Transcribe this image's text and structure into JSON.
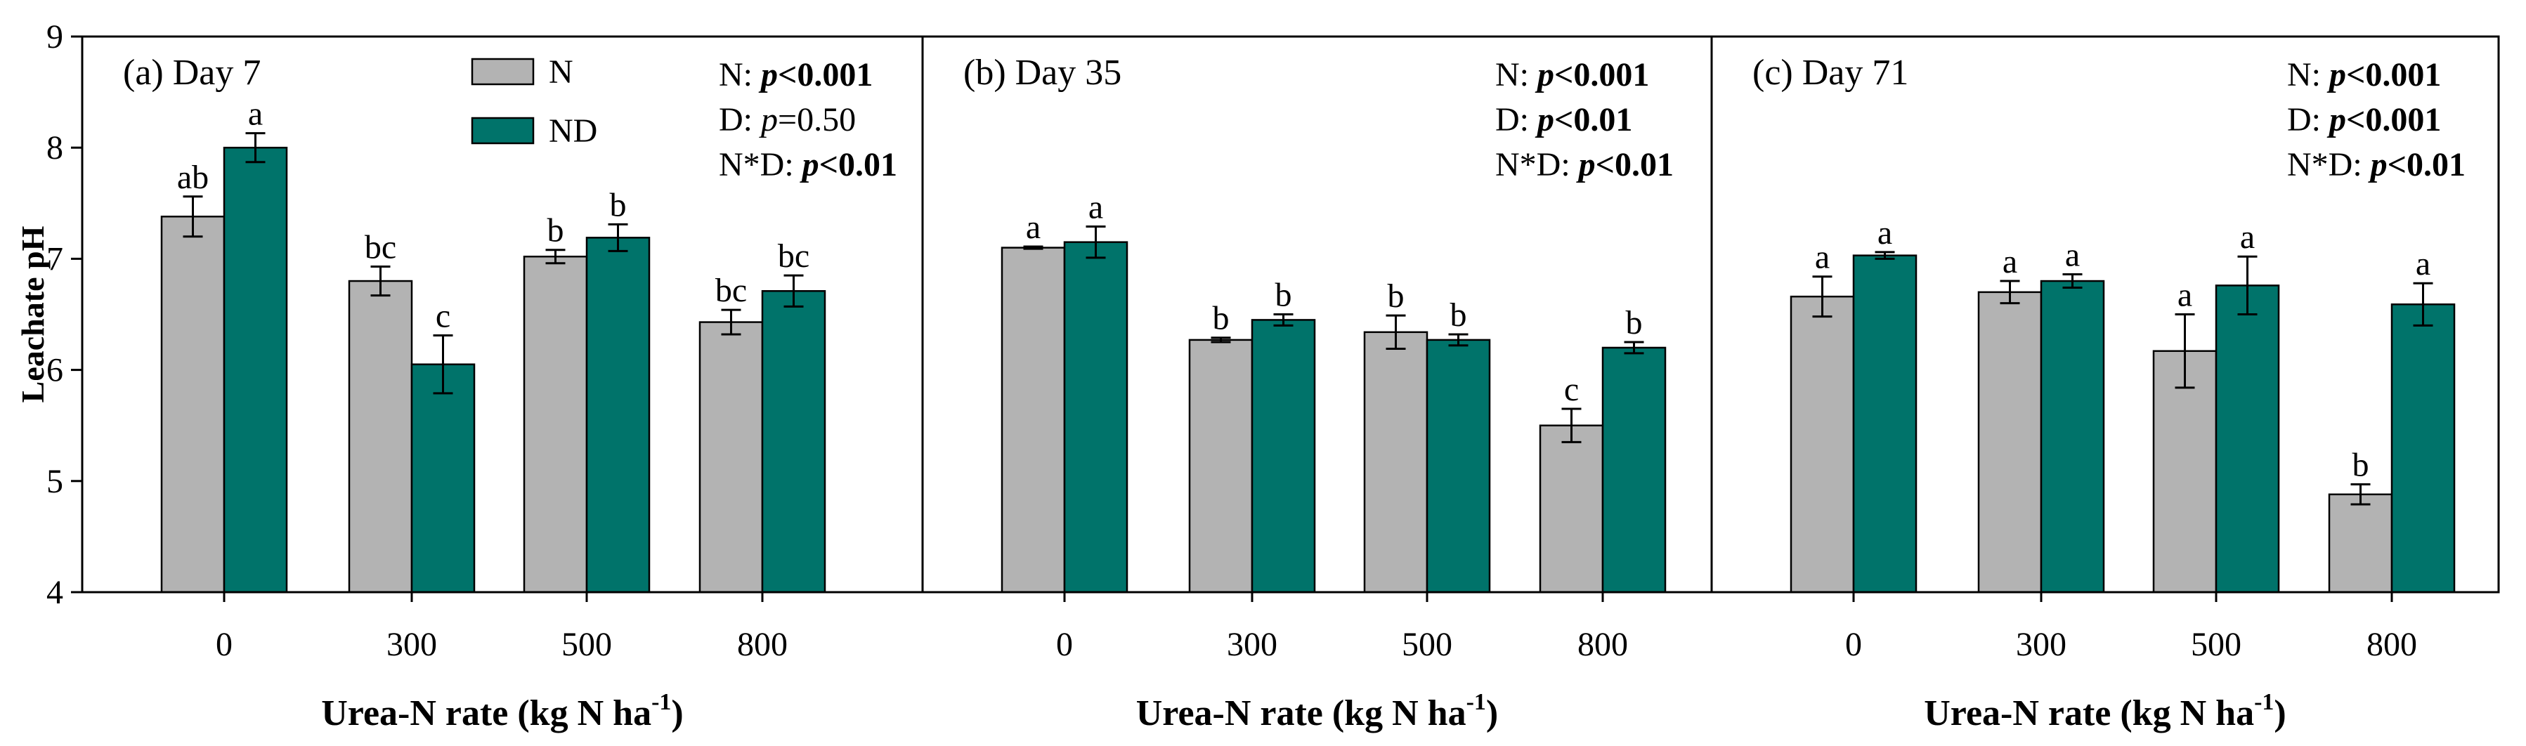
{
  "chart_data": {
    "type": "bar",
    "shared": {
      "ylabel": "Leachate pH",
      "xlabel_main": "Urea-N rate (kg N ha",
      "xlabel_sup": "-1",
      "xlabel_close": ")",
      "categories": [
        "0",
        "300",
        "500",
        "800"
      ],
      "ylim": [
        4,
        9
      ],
      "yticks": [
        "4",
        "5",
        "6",
        "7",
        "8",
        "9"
      ],
      "legend": [
        {
          "label": "N",
          "color": "#b3b3b3"
        },
        {
          "label": "ND",
          "color": "#00736a"
        }
      ]
    },
    "panels": [
      {
        "title": "(a) Day 7",
        "series": [
          {
            "name": "N",
            "values": [
              7.38,
              6.8,
              7.02,
              6.43
            ],
            "errors": [
              0.18,
              0.13,
              0.06,
              0.11
            ],
            "letters": [
              "ab",
              "bc",
              "b",
              "bc"
            ]
          },
          {
            "name": "ND",
            "values": [
              8.0,
              6.05,
              7.19,
              6.71
            ],
            "errors": [
              0.13,
              0.26,
              0.12,
              0.14
            ],
            "letters": [
              "a",
              "c",
              "b",
              "bc"
            ]
          }
        ],
        "stats": [
          {
            "label": "N: ",
            "p": "p",
            "rel": "<",
            "value": "0.001",
            "bold": true
          },
          {
            "label": "D: ",
            "p": "p",
            "rel": "=",
            "value": "0.50",
            "bold": false
          },
          {
            "label": "N*D: ",
            "p": "p",
            "rel": "<",
            "value": "0.01",
            "bold": true
          }
        ]
      },
      {
        "title": "(b) Day 35",
        "series": [
          {
            "name": "N",
            "values": [
              7.1,
              6.27,
              6.34,
              5.5
            ],
            "errors": [
              0.01,
              0.02,
              0.15,
              0.15
            ],
            "letters": [
              "a",
              "b",
              "b",
              "c"
            ]
          },
          {
            "name": "ND",
            "values": [
              7.15,
              6.45,
              6.27,
              6.2
            ],
            "errors": [
              0.14,
              0.05,
              0.05,
              0.05
            ],
            "letters": [
              "a",
              "b",
              "b",
              "b"
            ]
          }
        ],
        "stats": [
          {
            "label": "N: ",
            "p": "p",
            "rel": "<",
            "value": "0.001",
            "bold": true
          },
          {
            "label": "D: ",
            "p": "p",
            "rel": "<",
            "value": "0.01",
            "bold": true
          },
          {
            "label": "N*D: ",
            "p": "p",
            "rel": "<",
            "value": "0.01",
            "bold": true
          }
        ]
      },
      {
        "title": "(c) Day 71",
        "series": [
          {
            "name": "N",
            "values": [
              6.66,
              6.7,
              6.17,
              4.88
            ],
            "errors": [
              0.18,
              0.1,
              0.33,
              0.09
            ],
            "letters": [
              "a",
              "a",
              "a",
              "b"
            ]
          },
          {
            "name": "ND",
            "values": [
              7.03,
              6.8,
              6.76,
              6.59
            ],
            "errors": [
              0.03,
              0.06,
              0.26,
              0.19
            ],
            "letters": [
              "a",
              "a",
              "a",
              "a"
            ]
          }
        ],
        "stats": [
          {
            "label": "N: ",
            "p": "p",
            "rel": "<",
            "value": "0.001",
            "bold": true
          },
          {
            "label": "D: ",
            "p": "p",
            "rel": "<",
            "value": "0.001",
            "bold": true
          },
          {
            "label": "N*D: ",
            "p": "p",
            "rel": "<",
            "value": "0.01",
            "bold": true
          }
        ]
      }
    ]
  }
}
